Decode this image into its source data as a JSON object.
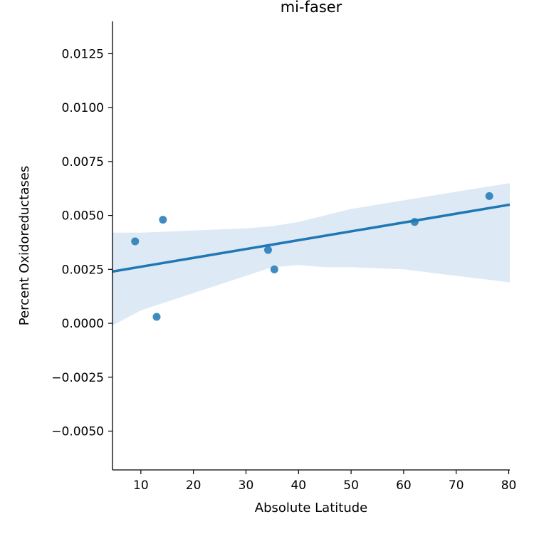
{
  "chart_data": {
    "type": "scatter",
    "title": "mi-faser",
    "xlabel": "Absolute Latitude",
    "ylabel": "Percent Oxidoreductases",
    "xlim": [
      4.6,
      80.2
    ],
    "ylim": [
      -0.0068,
      0.014
    ],
    "xticks": [
      10,
      20,
      30,
      40,
      50,
      60,
      70,
      80
    ],
    "xtick_labels": [
      "10",
      "20",
      "30",
      "40",
      "50",
      "60",
      "70",
      "80"
    ],
    "yticks": [
      -0.005,
      -0.0025,
      0.0,
      0.0025,
      0.005,
      0.0075,
      0.01,
      0.0125
    ],
    "ytick_labels": [
      "−0.0050",
      "−0.0025",
      "0.0000",
      "0.0025",
      "0.0050",
      "0.0075",
      "0.0100",
      "0.0125"
    ],
    "grid": false,
    "series": [
      {
        "points": [
          {
            "x": 8.9,
            "y": 0.0038
          },
          {
            "x": 13.0,
            "y": 0.0003
          },
          {
            "x": 14.2,
            "y": 0.0048
          },
          {
            "x": 34.2,
            "y": 0.0034
          },
          {
            "x": 35.4,
            "y": 0.0025
          },
          {
            "x": 62.1,
            "y": 0.0047
          },
          {
            "x": 76.3,
            "y": 0.0059
          }
        ],
        "color": "#1f77b4"
      }
    ],
    "regression": {
      "x": [
        4.6,
        80.2
      ],
      "y": [
        0.0024,
        0.0055
      ],
      "color": "#1f77b4"
    },
    "confidence_band": {
      "x": [
        4.6,
        10,
        20,
        30,
        35,
        40,
        45,
        50,
        60,
        70,
        80.2
      ],
      "upper": [
        0.0042,
        0.0042,
        0.0043,
        0.0044,
        0.0045,
        0.0047,
        0.005,
        0.0053,
        0.0057,
        0.0061,
        0.0065
      ],
      "lower": [
        -0.0001,
        0.0006,
        0.0014,
        0.0022,
        0.0026,
        0.0027,
        0.0026,
        0.0026,
        0.0025,
        0.0022,
        0.0019
      ],
      "color": "#c6dbef"
    }
  }
}
